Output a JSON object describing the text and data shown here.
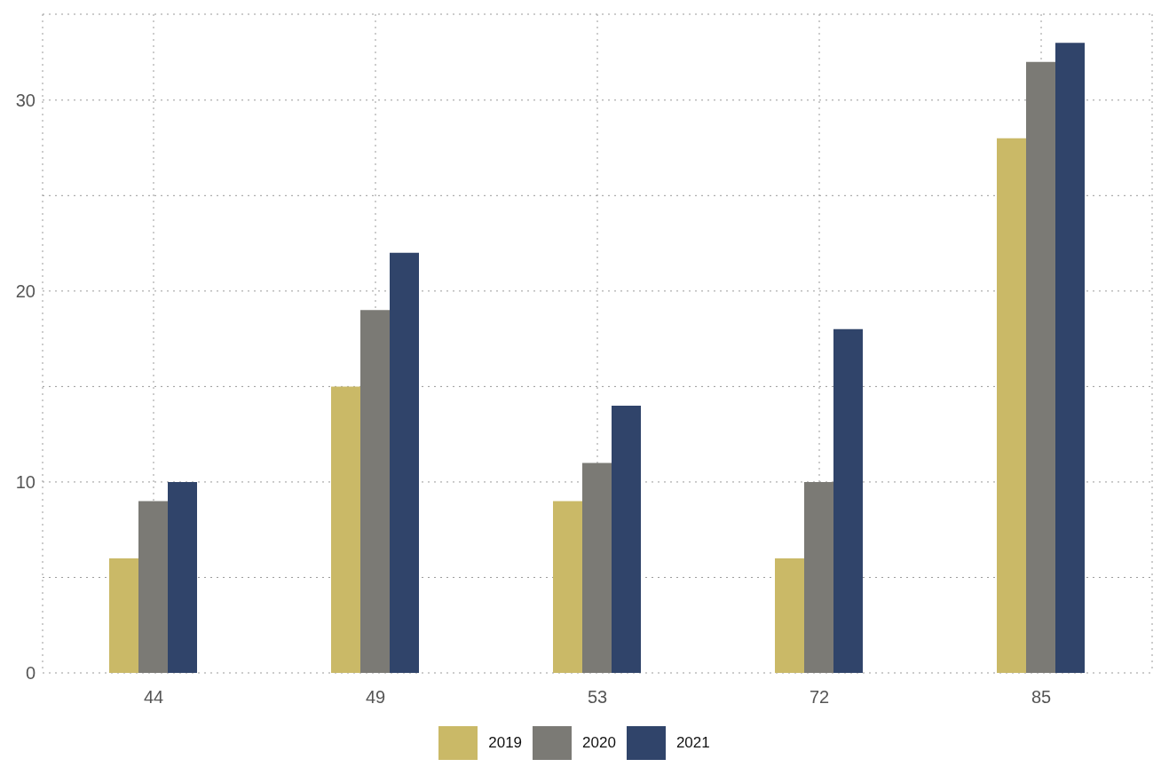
{
  "chart_data": {
    "type": "bar",
    "categories": [
      "44",
      "49",
      "53",
      "72",
      "85"
    ],
    "series": [
      {
        "name": "2019",
        "color": "#cab967",
        "values": [
          6,
          15,
          9,
          6,
          28
        ]
      },
      {
        "name": "2020",
        "color": "#7b7a75",
        "values": [
          9,
          19,
          11,
          10,
          32
        ]
      },
      {
        "name": "2021",
        "color": "#30446a",
        "values": [
          10,
          22,
          14,
          18,
          33
        ]
      }
    ],
    "ylim": [
      0,
      34.5
    ],
    "yticks": [
      0,
      {
        "value": 5,
        "label": null
      },
      10,
      {
        "value": 15,
        "label": null
      },
      20,
      {
        "value": 25,
        "label": null
      },
      30
    ],
    "grid": true,
    "legend": "bottom"
  }
}
